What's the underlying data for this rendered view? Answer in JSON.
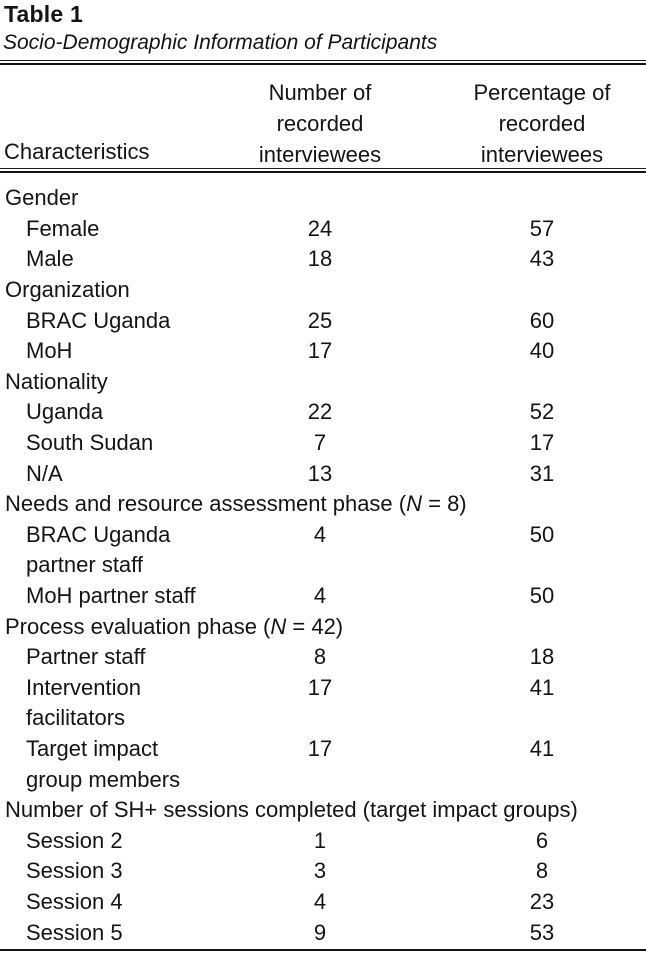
{
  "title": "Table 1",
  "subtitle": "Socio-Demographic Information of Participants",
  "header": {
    "col1": "Characteristics",
    "col2_lines": [
      "Number of",
      "recorded",
      "interviewees"
    ],
    "col3_lines": [
      "Percentage of",
      "recorded",
      "interviewees"
    ]
  },
  "rows": [
    {
      "type": "section",
      "segments": [
        {
          "t": "Gender"
        }
      ]
    },
    {
      "type": "item",
      "segments": [
        {
          "t": "Female"
        }
      ],
      "n": "24",
      "pct": "57"
    },
    {
      "type": "item",
      "segments": [
        {
          "t": "Male"
        }
      ],
      "n": "18",
      "pct": "43"
    },
    {
      "type": "section",
      "segments": [
        {
          "t": "Organization"
        }
      ]
    },
    {
      "type": "item",
      "segments": [
        {
          "t": "BRAC Uganda"
        }
      ],
      "n": "25",
      "pct": "60"
    },
    {
      "type": "item",
      "segments": [
        {
          "t": "MoH"
        }
      ],
      "n": "17",
      "pct": "40"
    },
    {
      "type": "section",
      "segments": [
        {
          "t": "Nationality"
        }
      ]
    },
    {
      "type": "item",
      "segments": [
        {
          "t": "Uganda"
        }
      ],
      "n": "22",
      "pct": "52"
    },
    {
      "type": "item",
      "segments": [
        {
          "t": "South Sudan"
        }
      ],
      "n": "7",
      "pct": "17"
    },
    {
      "type": "item",
      "segments": [
        {
          "t": "N/A"
        }
      ],
      "n": "13",
      "pct": "31"
    },
    {
      "type": "section",
      "segments": [
        {
          "t": "Needs and resource assessment phase ("
        },
        {
          "t": "N",
          "i": true
        },
        {
          "t": " = 8)"
        }
      ]
    },
    {
      "type": "item",
      "segments": [
        {
          "t": "BRAC Uganda"
        }
      ],
      "n": "4",
      "pct": "50"
    },
    {
      "type": "cont",
      "segments": [
        {
          "t": "partner staff"
        }
      ]
    },
    {
      "type": "item",
      "segments": [
        {
          "t": "MoH partner staff"
        }
      ],
      "n": "4",
      "pct": "50"
    },
    {
      "type": "section",
      "segments": [
        {
          "t": "Process evaluation phase ("
        },
        {
          "t": "N",
          "i": true
        },
        {
          "t": " = 42)"
        }
      ]
    },
    {
      "type": "item",
      "segments": [
        {
          "t": "Partner staff"
        }
      ],
      "n": "8",
      "pct": "18"
    },
    {
      "type": "item",
      "segments": [
        {
          "t": "Intervention"
        }
      ],
      "n": "17",
      "pct": "41"
    },
    {
      "type": "cont",
      "segments": [
        {
          "t": "facilitators"
        }
      ]
    },
    {
      "type": "item",
      "segments": [
        {
          "t": "Target impact"
        }
      ],
      "n": "17",
      "pct": "41"
    },
    {
      "type": "cont",
      "segments": [
        {
          "t": "group members"
        }
      ]
    },
    {
      "type": "section",
      "segments": [
        {
          "t": "Number of SH+ sessions completed (target impact groups)"
        }
      ]
    },
    {
      "type": "item",
      "segments": [
        {
          "t": "Session 2"
        }
      ],
      "n": "1",
      "pct": "6"
    },
    {
      "type": "item",
      "segments": [
        {
          "t": "Session 3"
        }
      ],
      "n": "3",
      "pct": "8"
    },
    {
      "type": "item",
      "segments": [
        {
          "t": "Session 4"
        }
      ],
      "n": "4",
      "pct": "23"
    },
    {
      "type": "item",
      "segments": [
        {
          "t": "Session 5"
        }
      ],
      "n": "9",
      "pct": "53"
    }
  ],
  "colors": {
    "text": "#141414",
    "rule": "#141414",
    "background": "#ffffff"
  }
}
